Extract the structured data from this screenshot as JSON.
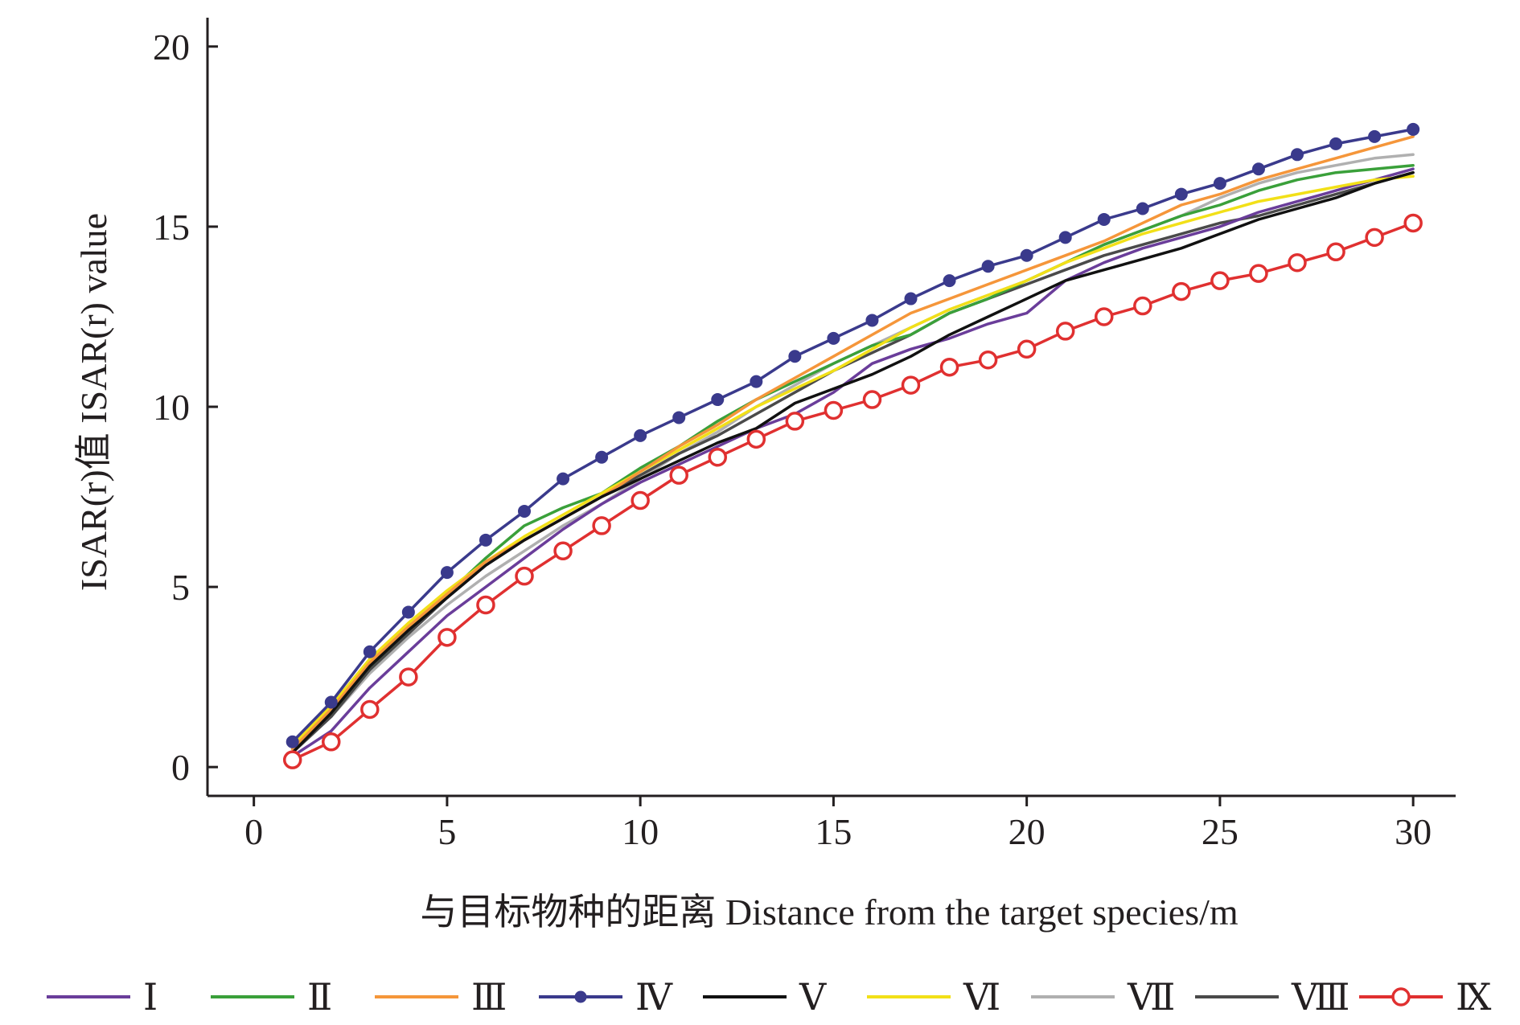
{
  "chart_data": {
    "type": "line",
    "title": "",
    "xlabel": "与目标物种的距离  Distance from the target species/m",
    "ylabel": "ISAR(r)值  ISAR(r) value",
    "xlim": [
      -1.2,
      31.1
    ],
    "ylim": [
      -0.8,
      20.8
    ],
    "x_ticks": [
      "0",
      "5",
      "10",
      "15",
      "20",
      "25",
      "30"
    ],
    "y_ticks": [
      "0",
      "5",
      "10",
      "15",
      "20"
    ],
    "grid": false,
    "legend_position": "bottom",
    "x": [
      1,
      2,
      3,
      4,
      5,
      6,
      7,
      8,
      9,
      10,
      11,
      12,
      13,
      14,
      15,
      16,
      17,
      18,
      19,
      20,
      21,
      22,
      23,
      24,
      25,
      26,
      27,
      28,
      29,
      30
    ],
    "series": [
      {
        "name": "Ⅰ",
        "color": "#6a3d9a",
        "marker": "none",
        "values": [
          0.3,
          1.0,
          2.2,
          3.2,
          4.2,
          5.0,
          5.8,
          6.6,
          7.3,
          7.9,
          8.4,
          8.9,
          9.4,
          9.8,
          10.4,
          11.2,
          11.6,
          11.9,
          12.3,
          12.6,
          13.5,
          14.0,
          14.4,
          14.7,
          15.0,
          15.4,
          15.7,
          16.0,
          16.3,
          16.6
        ]
      },
      {
        "name": "Ⅱ",
        "color": "#3aa03a",
        "marker": "none",
        "values": [
          0.5,
          1.5,
          2.8,
          3.8,
          4.8,
          5.8,
          6.7,
          7.2,
          7.6,
          8.3,
          8.9,
          9.6,
          10.2,
          10.7,
          11.2,
          11.7,
          12.0,
          12.6,
          13.0,
          13.5,
          14.0,
          14.5,
          14.9,
          15.3,
          15.6,
          16.0,
          16.3,
          16.5,
          16.6,
          16.7
        ]
      },
      {
        "name": "Ⅲ",
        "color": "#f5963a",
        "marker": "none",
        "values": [
          0.5,
          1.6,
          2.9,
          3.9,
          4.8,
          5.7,
          6.3,
          6.9,
          7.5,
          8.2,
          8.9,
          9.5,
          10.2,
          10.8,
          11.4,
          12.0,
          12.6,
          13.0,
          13.4,
          13.8,
          14.2,
          14.6,
          15.1,
          15.6,
          15.9,
          16.3,
          16.6,
          16.9,
          17.2,
          17.5
        ]
      },
      {
        "name": "Ⅳ",
        "color": "#3a3a8c",
        "marker": "square",
        "values": [
          0.7,
          1.8,
          3.2,
          4.3,
          5.4,
          6.3,
          7.1,
          8.0,
          8.6,
          9.2,
          9.7,
          10.2,
          10.7,
          11.4,
          11.9,
          12.4,
          13.0,
          13.5,
          13.9,
          14.2,
          14.7,
          15.2,
          15.5,
          15.9,
          16.2,
          16.6,
          17.0,
          17.3,
          17.5,
          17.7
        ]
      },
      {
        "name": "Ⅴ",
        "color": "#111111",
        "marker": "none",
        "values": [
          0.4,
          1.5,
          2.8,
          3.8,
          4.7,
          5.6,
          6.3,
          6.9,
          7.5,
          8.0,
          8.5,
          9.0,
          9.4,
          10.1,
          10.5,
          10.9,
          11.4,
          12.0,
          12.5,
          13.0,
          13.5,
          13.8,
          14.1,
          14.4,
          14.8,
          15.2,
          15.5,
          15.8,
          16.2,
          16.5
        ]
      },
      {
        "name": "Ⅵ",
        "color": "#f2e018",
        "marker": "none",
        "values": [
          0.6,
          1.7,
          3.0,
          4.0,
          4.9,
          5.7,
          6.4,
          7.0,
          7.6,
          8.2,
          8.8,
          9.4,
          10.0,
          10.5,
          11.0,
          11.6,
          12.2,
          12.7,
          13.1,
          13.5,
          14.0,
          14.4,
          14.8,
          15.1,
          15.4,
          15.7,
          15.9,
          16.1,
          16.3,
          16.4
        ]
      },
      {
        "name": "Ⅶ",
        "color": "#b0b0b0",
        "marker": "none",
        "values": [
          0.5,
          1.4,
          2.6,
          3.6,
          4.5,
          5.3,
          6.0,
          6.7,
          7.3,
          8.0,
          8.7,
          9.3,
          10.0,
          10.6,
          11.2,
          11.7,
          12.2,
          12.7,
          13.1,
          13.5,
          14.0,
          14.5,
          14.9,
          15.3,
          15.8,
          16.2,
          16.5,
          16.7,
          16.9,
          17.0
        ]
      },
      {
        "name": "Ⅷ",
        "color": "#4a4a4a",
        "marker": "none",
        "values": [
          0.4,
          1.4,
          2.7,
          3.7,
          4.7,
          5.6,
          6.3,
          6.9,
          7.5,
          8.1,
          8.7,
          9.2,
          9.8,
          10.4,
          11.0,
          11.5,
          12.0,
          12.6,
          13.0,
          13.4,
          13.8,
          14.2,
          14.5,
          14.8,
          15.1,
          15.3,
          15.6,
          15.9,
          16.2,
          16.5
        ]
      },
      {
        "name": "Ⅸ",
        "color": "#e03030",
        "marker": "circle",
        "values": [
          0.2,
          0.7,
          1.6,
          2.5,
          3.6,
          4.5,
          5.3,
          6.0,
          6.7,
          7.4,
          8.1,
          8.6,
          9.1,
          9.6,
          9.9,
          10.2,
          10.6,
          11.1,
          11.3,
          11.6,
          12.1,
          12.5,
          12.8,
          13.2,
          13.5,
          13.7,
          14.0,
          14.3,
          14.7,
          15.1
        ]
      }
    ]
  }
}
